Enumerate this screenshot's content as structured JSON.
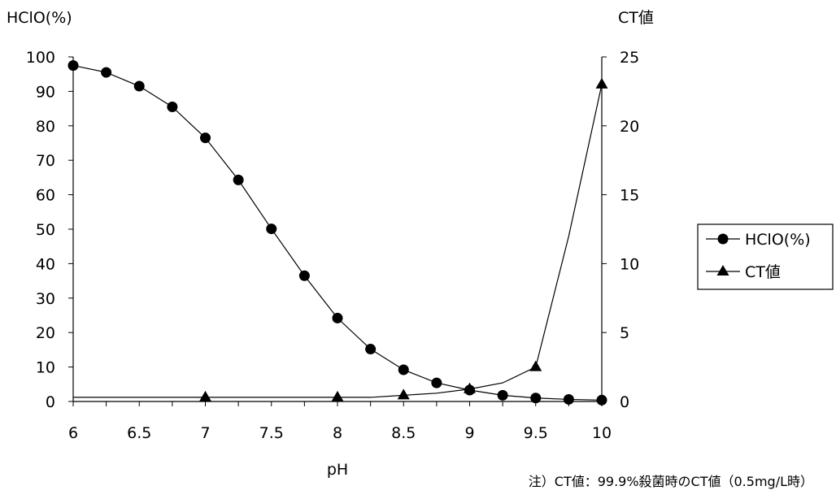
{
  "chart_data": {
    "type": "line",
    "title": "",
    "xlabel": "pH",
    "ylabel": "HClO(%)",
    "y2label": "CT値",
    "x": [
      6,
      6.25,
      6.5,
      6.75,
      7,
      7.25,
      7.5,
      7.75,
      8,
      8.25,
      8.5,
      8.75,
      9,
      9.25,
      9.5,
      9.75,
      10
    ],
    "xlim": [
      6,
      10
    ],
    "ylim": [
      0,
      100
    ],
    "y2lim": [
      0,
      25
    ],
    "x_ticks": [
      "6",
      "6.5",
      "7",
      "7.5",
      "8",
      "8.5",
      "9",
      "9.5",
      "10"
    ],
    "y_ticks": [
      "0",
      "10",
      "20",
      "30",
      "40",
      "50",
      "60",
      "70",
      "80",
      "90",
      "100"
    ],
    "y2_ticks": [
      "0",
      "5",
      "10",
      "15",
      "20",
      "25"
    ],
    "series": [
      {
        "name": "HClO(%)",
        "axis": "left",
        "marker": "circle",
        "values": [
          97.5,
          95.5,
          91.5,
          85.5,
          76.5,
          64.3,
          50.1,
          36.5,
          24.2,
          15.2,
          9.2,
          5.4,
          3.3,
          1.8,
          1.0,
          0.6,
          0.4
        ]
      },
      {
        "name": "CT値",
        "axis": "right",
        "marker": "triangle",
        "points": [
          {
            "x": 6,
            "y": 0.3
          },
          {
            "x": 7,
            "y": 0.3
          },
          {
            "x": 8,
            "y": 0.3
          },
          {
            "x": 8.25,
            "y": 0.3
          },
          {
            "x": 8.5,
            "y": 0.45
          },
          {
            "x": 8.75,
            "y": 0.6
          },
          {
            "x": 9,
            "y": 0.9
          },
          {
            "x": 9.25,
            "y": 1.35
          },
          {
            "x": 9.5,
            "y": 2.5
          },
          {
            "x": 9.75,
            "y": 12.0
          },
          {
            "x": 10,
            "y": 23.0
          }
        ],
        "marker_x": [
          7,
          8,
          8.5,
          9,
          9.5,
          10
        ]
      }
    ],
    "legend": {
      "position": "right",
      "items": [
        "HClO(%)",
        "CT値"
      ]
    },
    "grid": false,
    "note": "注）CT値：99.9%殺菌時のCT値（0.5mg/L時）"
  }
}
